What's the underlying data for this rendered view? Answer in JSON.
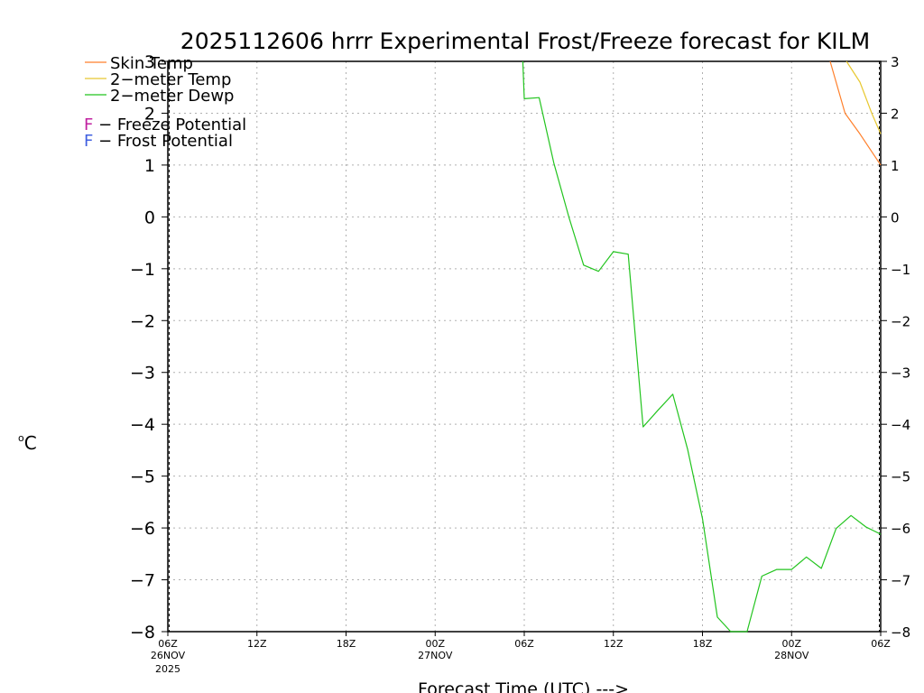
{
  "chart_data": {
    "type": "line",
    "title": "2025112606 hrrr Experimental Frost/Freeze forecast for KILM",
    "ylabel_sup": "o",
    "ylabel": "C",
    "xlabel": "Forecast Time (UTC) --->",
    "ylim": [
      -8,
      3
    ],
    "xlim": [
      0,
      48
    ],
    "y_ticks": [
      "3",
      "2",
      "1",
      "0",
      "−1",
      "−2",
      "−3",
      "−4",
      "−5",
      "−6",
      "−7",
      "−8"
    ],
    "y_tick_values": [
      3,
      2,
      1,
      0,
      -1,
      -2,
      -3,
      -4,
      -5,
      -6,
      -7,
      -8
    ],
    "x_ticks": [
      {
        "x": 0,
        "label": "06Z",
        "sub": "26NOV",
        "sub2": "2025"
      },
      {
        "x": 6,
        "label": "12Z"
      },
      {
        "x": 12,
        "label": "18Z"
      },
      {
        "x": 18,
        "label": "00Z",
        "sub": "27NOV"
      },
      {
        "x": 24,
        "label": "06Z"
      },
      {
        "x": 30,
        "label": "12Z"
      },
      {
        "x": 36,
        "label": "18Z"
      },
      {
        "x": 42,
        "label": "00Z",
        "sub": "28NOV"
      },
      {
        "x": 48,
        "label": "06Z"
      }
    ],
    "grid": true,
    "legend": [
      {
        "label": "Skin Temp",
        "color": "#ff7f2a"
      },
      {
        "label": "2−meter Temp",
        "color": "#e8c830"
      },
      {
        "label": "2−meter Dewp",
        "color": "#22c41e"
      }
    ],
    "potential_legend": [
      {
        "letter": "F",
        "label": " − Freeze Potential",
        "color": "#c020a0"
      },
      {
        "letter": "F",
        "label": " − Frost Potential",
        "color": "#4060e0"
      }
    ],
    "series": [
      {
        "name": "Skin Temp",
        "color": "#ff7f2a",
        "x": [
          44.6,
          45.6,
          46.6,
          48
        ],
        "y": [
          3,
          2.0,
          1.6,
          1.0
        ]
      },
      {
        "name": "2-meter Temp",
        "color": "#e8c830",
        "x": [
          45.7,
          46.6,
          47.4,
          48
        ],
        "y": [
          3,
          2.6,
          2.0,
          1.6
        ]
      },
      {
        "name": "2-meter Dewp",
        "color": "#22c41e",
        "x": [
          23.9,
          24.0,
          25.0,
          26.0,
          27.0,
          28.0,
          29.0,
          30.0,
          31.0,
          32.0,
          33.0,
          34.0,
          35.0,
          36.0,
          37.0,
          37.9,
          39.0,
          40.0,
          41.0,
          42.0,
          43.0,
          44.0,
          45.0,
          46.0,
          47.0,
          48.0
        ],
        "y": [
          3,
          2.28,
          2.3,
          1.03,
          0.0,
          -0.93,
          -1.05,
          -0.67,
          -0.72,
          -4.05,
          -3.73,
          -3.42,
          -4.48,
          -5.82,
          -7.72,
          -8.0,
          -8.0,
          -6.93,
          -6.8,
          -6.8,
          -6.56,
          -6.78,
          -6.01,
          -5.76,
          -5.98,
          -6.12
        ]
      }
    ]
  }
}
